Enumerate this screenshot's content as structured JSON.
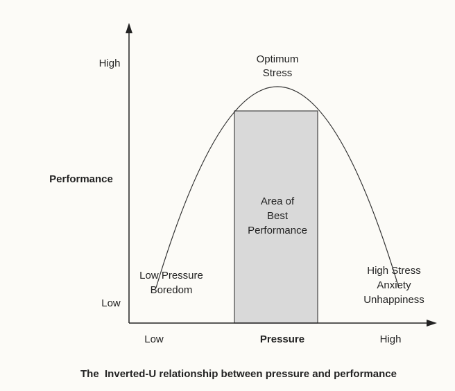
{
  "y_axis": {
    "label": "Performance",
    "high": "High",
    "low": "Low"
  },
  "x_axis": {
    "label": "Pressure",
    "low": "Low",
    "high": "High"
  },
  "annotations": {
    "peak": [
      "Optimum",
      "Stress"
    ],
    "region": [
      "Area of",
      "Best",
      "Performance"
    ],
    "left": [
      "Low Pressure",
      "Boredom"
    ],
    "right": [
      "High Stress",
      "Anxiety",
      "Unhappiness"
    ]
  },
  "caption": "The  Inverted-U relationship between pressure and performance"
}
